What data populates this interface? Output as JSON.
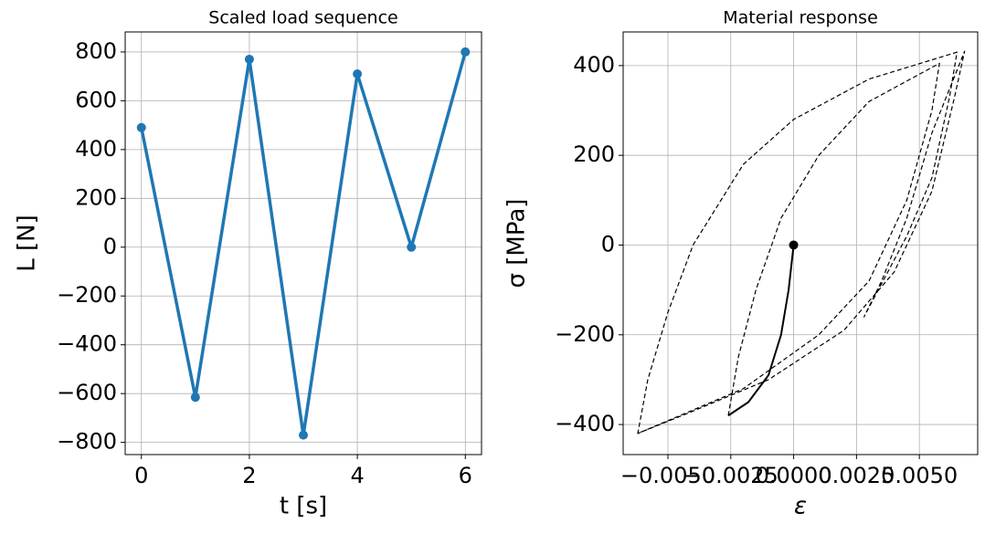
{
  "chart_data": [
    {
      "type": "line",
      "title": "Scaled load sequence",
      "xlabel": "t [s]",
      "ylabel": "L [N]",
      "grid": true,
      "xlim": [
        -0.3,
        6.3
      ],
      "ylim": [
        -850,
        882
      ],
      "xticks": [
        0,
        2,
        4,
        6
      ],
      "yticks": [
        {
          "value": -800,
          "label": "−800"
        },
        {
          "value": -600,
          "label": "−600"
        },
        {
          "value": -400,
          "label": "−400"
        },
        {
          "value": -200,
          "label": "−200"
        },
        0,
        200,
        400,
        600,
        800
      ],
      "series": [
        {
          "color": "#1f77b4",
          "linestyle": "solid",
          "marker": true,
          "linewidth": 3.5,
          "x": [
            0,
            1,
            2,
            3,
            4,
            5,
            6
          ],
          "values": [
            490,
            -615,
            770,
            -770,
            710,
            0,
            800
          ]
        }
      ]
    },
    {
      "type": "line",
      "title": "Material response",
      "xlabel": "ε",
      "ylabel": "σ [MPa]",
      "grid": true,
      "xlim": [
        -0.00678,
        0.00732
      ],
      "ylim": [
        -467,
        475
      ],
      "xticks": [
        {
          "value": -0.005,
          "label": "−0.0050"
        },
        {
          "value": -0.0025,
          "label": "−0.0025"
        },
        {
          "value": 0,
          "label": "0.0000"
        },
        {
          "value": 0.0025,
          "label": "0.0025"
        },
        {
          "value": 0.005,
          "label": "0.0050"
        }
      ],
      "yticks": [
        {
          "value": -400,
          "label": "−400"
        },
        {
          "value": -200,
          "label": "−200"
        },
        0,
        200,
        400
      ],
      "series": [
        {
          "color": "#000000",
          "linestyle": "solid",
          "marker": false,
          "linewidth": 2,
          "x": [
            0,
            -0.0002,
            -0.0005,
            -0.001,
            -0.0018,
            -0.0026
          ],
          "values": [
            0,
            -100,
            -200,
            -290,
            -350,
            -380
          ]
        },
        {
          "color": "#000000",
          "linestyle": "dashed",
          "marker": false,
          "linewidth": 1.2,
          "x": [
            -0.0026,
            -0.0022,
            -0.0015,
            -0.0005,
            0.001,
            0.003,
            0.0058,
            0.0055,
            0.0045,
            0.003,
            0.001,
            -0.002,
            -0.0062,
            -0.0058,
            -0.005,
            -0.004,
            -0.002,
            0,
            0.003,
            0.0065,
            0.0062,
            0.0055,
            0.0045,
            0.0028,
            0.0035,
            0.0045,
            0.0055,
            0.0068,
            0.0064,
            0.0055,
            0.004,
            0.002,
            -0.001,
            -0.004,
            -0.0062
          ],
          "values": [
            -380,
            -250,
            -100,
            60,
            200,
            320,
            405,
            300,
            100,
            -80,
            -200,
            -320,
            -420,
            -300,
            -150,
            0,
            180,
            280,
            370,
            430,
            330,
            150,
            20,
            -160,
            -80,
            60,
            250,
            432,
            330,
            120,
            -60,
            -190,
            -300,
            -370,
            -420
          ]
        },
        {
          "color": "#000000",
          "linestyle": "none",
          "marker": true,
          "linewidth": 0,
          "x": [
            0
          ],
          "values": [
            0
          ]
        }
      ]
    }
  ]
}
